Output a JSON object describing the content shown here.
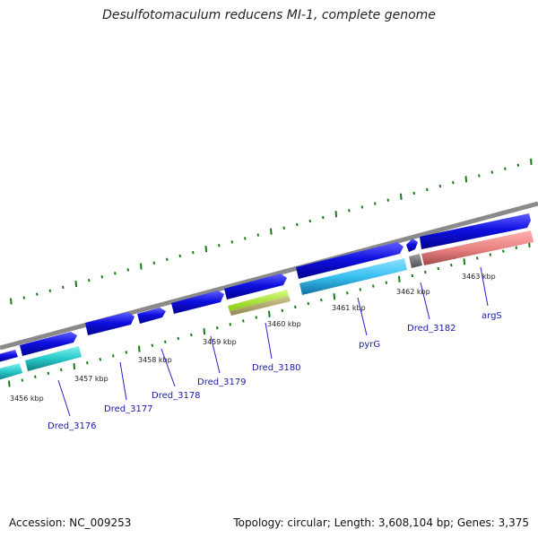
{
  "title": "Desulfotomaculum reducens MI-1, complete genome",
  "footer": {
    "accession": "Accession: NC_009253",
    "topology": "Topology: circular; Length: 3,608,104 bp; Genes: 3,375"
  },
  "colors": {
    "backbone": "#8a8a8a",
    "forward_gene": "#1010e0",
    "reverse_cyan": "#28c8c8",
    "reverse_lightblue": "#38c0f0",
    "reverse_lime": "#a8e830",
    "reverse_olive": "#b8b070",
    "reverse_grey": "#707070",
    "reverse_salmon": "#e88080",
    "tick": "#1a7a1a",
    "label_line": "#2222cc"
  },
  "kbp_ticks": [
    "3456 kbp",
    "3457 kbp",
    "3458 kbp",
    "3459 kbp",
    "3460 kbp",
    "3461 kbp",
    "3462 kbp",
    "3463 kbp"
  ],
  "gene_labels": [
    "Dred_3176",
    "Dred_3177",
    "Dred_3178",
    "Dred_3179",
    "Dred_3180",
    "pyrG",
    "Dred_3182",
    "argS"
  ]
}
